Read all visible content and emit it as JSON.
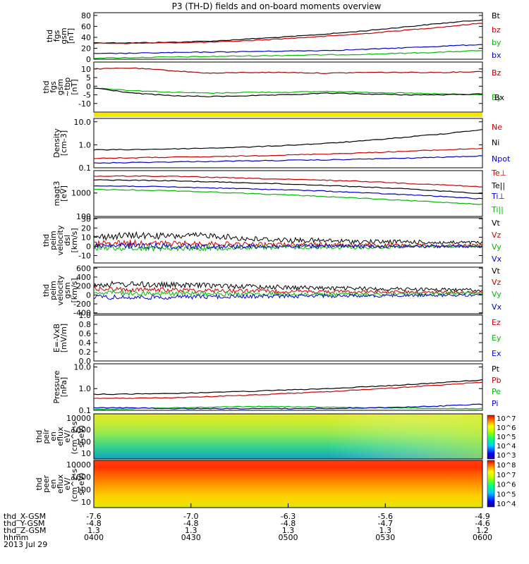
{
  "title": "P3 (TH-D) fields and on-board moments overview",
  "chart_data": [
    {
      "type": "line",
      "panel": "fgs_gsm",
      "ylabel": [
        "thd",
        "fgs",
        "gsm",
        "[nT]"
      ],
      "yticks": [
        "0",
        "20",
        "40",
        "60",
        "80"
      ],
      "ylim": [
        0,
        85
      ],
      "series": [
        {
          "name": "Bt",
          "color": "#000000",
          "y": [
            30,
            30,
            31,
            33,
            37,
            41,
            46,
            52,
            59,
            66,
            72
          ]
        },
        {
          "name": "bz",
          "color": "#cc0000",
          "y": [
            29,
            29,
            30,
            31,
            34,
            38,
            42,
            47,
            53,
            59,
            66
          ]
        },
        {
          "name": "by",
          "color": "#00bb00",
          "y": [
            2,
            3,
            4,
            5,
            6,
            7,
            8,
            9,
            11,
            13,
            16
          ]
        },
        {
          "name": "bx",
          "color": "#0000cc",
          "y": [
            10,
            11,
            12,
            13,
            14,
            15,
            16,
            18,
            21,
            24,
            27
          ]
        }
      ]
    },
    {
      "type": "line",
      "panel": "fgs_gse_tbp",
      "ylabel": [
        "thd",
        "fgs",
        "gsm",
        "~tbp",
        "[nT]"
      ],
      "yticks": [
        "-10",
        "-5",
        "0",
        "5",
        "10"
      ],
      "ylim": [
        -15,
        14
      ],
      "series": [
        {
          "name": "Bz",
          "color": "#aa0000",
          "y": [
            10,
            10.5,
            9,
            7.5,
            8,
            8,
            7.5,
            8,
            8,
            8,
            8.5
          ]
        },
        {
          "name": "By",
          "color": "#00bb00",
          "y": [
            -1,
            -2.5,
            -3.5,
            -4,
            -3.5,
            -3.5,
            -3,
            -3.5,
            -4,
            -4.5,
            -5
          ]
        },
        {
          "name": "Bx",
          "color": "#000000",
          "y": [
            -1,
            -4,
            -5.5,
            -6,
            -5.5,
            -5,
            -4,
            -4.5,
            -5,
            -5,
            -4.5
          ]
        }
      ]
    },
    {
      "type": "line",
      "panel": "density",
      "ylog": true,
      "ylabel": [
        "Density",
        "[cm-3]"
      ],
      "yticks": [
        "0.1",
        "1.0",
        "10.0"
      ],
      "ylim": [
        0.1,
        14
      ],
      "series": [
        {
          "name": "Ne",
          "color": "#cc0000",
          "y": [
            0.26,
            0.27,
            0.29,
            0.3,
            0.33,
            0.36,
            0.4,
            0.45,
            0.52,
            0.6,
            0.7
          ]
        },
        {
          "name": "Ni",
          "color": "#000000",
          "y": [
            0.6,
            0.62,
            0.66,
            0.72,
            0.8,
            0.95,
            1.15,
            1.5,
            2.1,
            3.0,
            4.5
          ]
        },
        {
          "name": "Npot",
          "color": "#0000cc",
          "y": [
            0.16,
            0.17,
            0.18,
            0.19,
            0.2,
            0.21,
            0.22,
            0.24,
            0.26,
            0.29,
            0.33
          ]
        }
      ]
    },
    {
      "type": "line",
      "panel": "temperature",
      "ylog": true,
      "ylabel": [
        "magt3",
        "[eV]"
      ],
      "yticks": [
        "100",
        "1000"
      ],
      "ylim": [
        100,
        9000
      ],
      "series": [
        {
          "name": "Te⊥",
          "color": "#cc0000",
          "y": [
            5200,
            5300,
            5100,
            4700,
            4200,
            3800,
            3500,
            3100,
            2600,
            2200,
            1800
          ]
        },
        {
          "name": "Te||",
          "color": "#000000",
          "y": [
            3600,
            3500,
            3300,
            3000,
            2700,
            2400,
            2100,
            1800,
            1500,
            1200,
            950
          ]
        },
        {
          "name": "Ti⊥",
          "color": "#0000cc",
          "y": [
            2000,
            1950,
            1800,
            1650,
            1500,
            1350,
            1200,
            1000,
            850,
            700,
            560
          ]
        },
        {
          "name": "Ti||",
          "color": "#00bb00",
          "y": [
            1400,
            1350,
            1250,
            1100,
            950,
            820,
            700,
            580,
            480,
            400,
            330
          ]
        }
      ]
    },
    {
      "type": "line",
      "panel": "peim_velocity_dsl",
      "ylabel": [
        "thd",
        "peim",
        "velocity",
        "dsl",
        "[km/s]"
      ],
      "yticks": [
        "-10",
        "0",
        "10",
        "20",
        "30"
      ],
      "ylim": [
        -18,
        31
      ],
      "series": [
        {
          "name": "Vt",
          "color": "#000000",
          "y": [
            10,
            12,
            11,
            12,
            8,
            7,
            6,
            5,
            5,
            4,
            4
          ]
        },
        {
          "name": "Vz",
          "color": "#cc0000",
          "y": [
            3,
            4,
            3,
            3,
            2,
            2,
            2,
            1,
            1,
            1,
            1
          ]
        },
        {
          "name": "Vy",
          "color": "#00bb00",
          "y": [
            -1,
            -2,
            -2,
            -2,
            -1,
            -1,
            -1,
            -1,
            0,
            0,
            0
          ]
        },
        {
          "name": "Vx",
          "color": "#0000cc",
          "y": [
            0,
            1,
            0,
            0,
            0,
            0,
            0,
            0,
            0,
            0,
            0
          ]
        }
      ]
    },
    {
      "type": "line",
      "panel": "peim_velocity_gsm",
      "ylabel": [
        "thd",
        "peim",
        "velocity",
        "gsm",
        "[km/s]"
      ],
      "yticks": [
        "-400",
        "-200",
        "0",
        "200",
        "400",
        "600"
      ],
      "ylim": [
        -420,
        620
      ],
      "series": [
        {
          "name": "Vt",
          "color": "#000000",
          "y": [
            230,
            240,
            220,
            210,
            190,
            170,
            150,
            140,
            130,
            120,
            110
          ]
        },
        {
          "name": "Vz",
          "color": "#cc0000",
          "y": [
            130,
            120,
            110,
            100,
            90,
            80,
            75,
            70,
            65,
            60,
            55
          ]
        },
        {
          "name": "Vy",
          "color": "#00bb00",
          "y": [
            60,
            40,
            30,
            20,
            20,
            10,
            10,
            10,
            20,
            30,
            40
          ]
        },
        {
          "name": "Vx",
          "color": "#0000cc",
          "y": [
            -50,
            -60,
            -50,
            -40,
            -30,
            -30,
            -20,
            -20,
            -10,
            -10,
            0
          ]
        }
      ]
    },
    {
      "type": "line",
      "panel": "e_vxb",
      "ylabel": [
        "E=-VxB",
        "[mV/m]"
      ],
      "yticks": [
        "0.0",
        "0.2",
        "0.4",
        "0.6",
        "0.8",
        "1.0"
      ],
      "ylim": [
        0,
        1.0
      ],
      "series": [
        {
          "name": "Ez",
          "color": "#cc0000",
          "y": []
        },
        {
          "name": "Ey",
          "color": "#00bb00",
          "y": []
        },
        {
          "name": "Ex",
          "color": "#0000cc",
          "y": []
        }
      ]
    },
    {
      "type": "line",
      "panel": "pressure",
      "ylog": true,
      "ylabel": [
        "Pressure",
        "[nPa]"
      ],
      "yticks": [
        "0.1",
        "1.0",
        "10.0"
      ],
      "ylim": [
        0.1,
        14
      ],
      "series": [
        {
          "name": "Pt",
          "color": "#000000",
          "y": [
            0.55,
            0.56,
            0.6,
            0.66,
            0.75,
            0.87,
            1.0,
            1.2,
            1.5,
            1.9,
            2.5
          ]
        },
        {
          "name": "Pb",
          "color": "#cc0000",
          "y": [
            0.35,
            0.36,
            0.38,
            0.43,
            0.5,
            0.6,
            0.72,
            0.9,
            1.15,
            1.5,
            2.0
          ]
        },
        {
          "name": "Pe",
          "color": "#00bb00",
          "y": [
            0.11,
            0.12,
            0.13,
            0.14,
            0.15,
            0.15,
            0.14,
            0.13,
            0.13,
            0.12,
            0.12
          ]
        },
        {
          "name": "Pi",
          "color": "#0000cc",
          "y": [
            0.13,
            0.13,
            0.12,
            0.12,
            0.12,
            0.12,
            0.12,
            0.13,
            0.14,
            0.16,
            0.19
          ]
        }
      ]
    },
    {
      "type": "heatmap",
      "panel": "peir_en_eflux",
      "ylabel": [
        "thd",
        "peir",
        "en",
        "eflux",
        "eV/",
        "(cm^2-s-",
        "sr-eV)"
      ],
      "yticks": [
        "10",
        "100",
        "1000",
        "10000"
      ],
      "colorbar": [
        "10^3",
        "10^4",
        "10^5",
        "10^6",
        "10^7"
      ]
    },
    {
      "type": "heatmap",
      "panel": "peer_en_eflux",
      "ylabel": [
        "thd",
        "peer",
        "en",
        "eflux",
        "eV/",
        "(cm^2-s-",
        "sr-eV)"
      ],
      "yticks": [
        "10",
        "100",
        "1000",
        "10000"
      ],
      "colorbar": [
        "10^4",
        "10^5",
        "10^6",
        "10^7",
        "10^8"
      ]
    }
  ],
  "xaxis": {
    "rows": [
      {
        "label": "thd_X-GSM",
        "values": [
          "-7.6",
          "-7.0",
          "-6.3",
          "-5.6",
          "-4.9"
        ]
      },
      {
        "label": "thd_Y-GSM",
        "values": [
          "-4.8",
          "-4.8",
          "-4.8",
          "-4.7",
          "-4.6"
        ]
      },
      {
        "label": "thd_Z-GSM",
        "values": [
          "1.3",
          "1.3",
          "1.3",
          "1.3",
          "1.2"
        ]
      },
      {
        "label": "hhmm",
        "values": [
          "0400",
          "0430",
          "0500",
          "0530",
          "0600"
        ]
      }
    ],
    "date": "2013 Jul 29"
  }
}
